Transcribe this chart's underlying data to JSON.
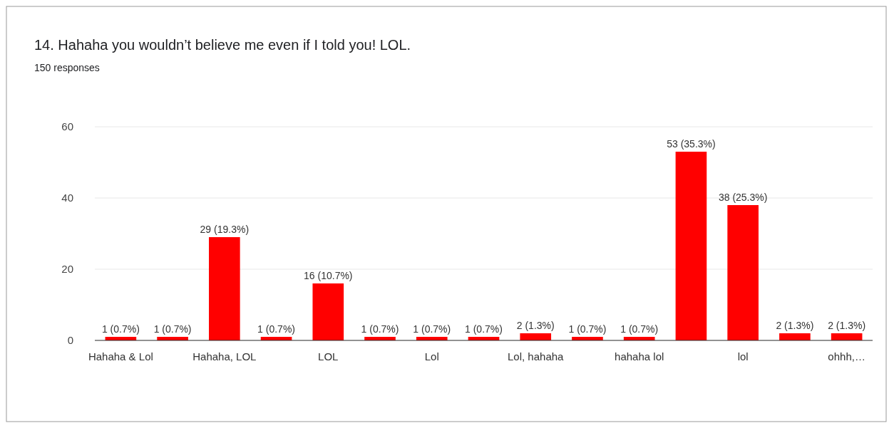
{
  "chart_data": {
    "type": "bar",
    "title": "14. Hahaha you wouldn’t believe me even if I told you! LOL.",
    "subtitle": "150 responses",
    "categories": [
      "Hahaha & Lol",
      null,
      "Hahaha, LOL",
      null,
      "LOL",
      null,
      "Lol",
      null,
      "Lol, hahaha",
      null,
      "hahaha lol",
      null,
      "lol",
      null,
      "ohhh,…"
    ],
    "values": [
      1,
      1,
      29,
      1,
      16,
      1,
      1,
      1,
      2,
      1,
      1,
      53,
      38,
      2,
      2
    ],
    "value_labels": [
      "1 (0.7%)",
      "1 (0.7%)",
      "29 (19.3%)",
      "1 (0.7%)",
      "16 (10.7%)",
      "1 (0.7%)",
      "1 (0.7%)",
      "1 (0.7%)",
      "2 (1.3%)",
      "1 (0.7%)",
      "1 (0.7%)",
      "53 (35.3%)",
      "38 (25.3%)",
      "2 (1.3%)",
      "2 (1.3%)"
    ],
    "color": "#ff0000",
    "ylim": [
      0,
      60
    ],
    "yticks": [
      0,
      20,
      40,
      60
    ],
    "grid": "y"
  }
}
